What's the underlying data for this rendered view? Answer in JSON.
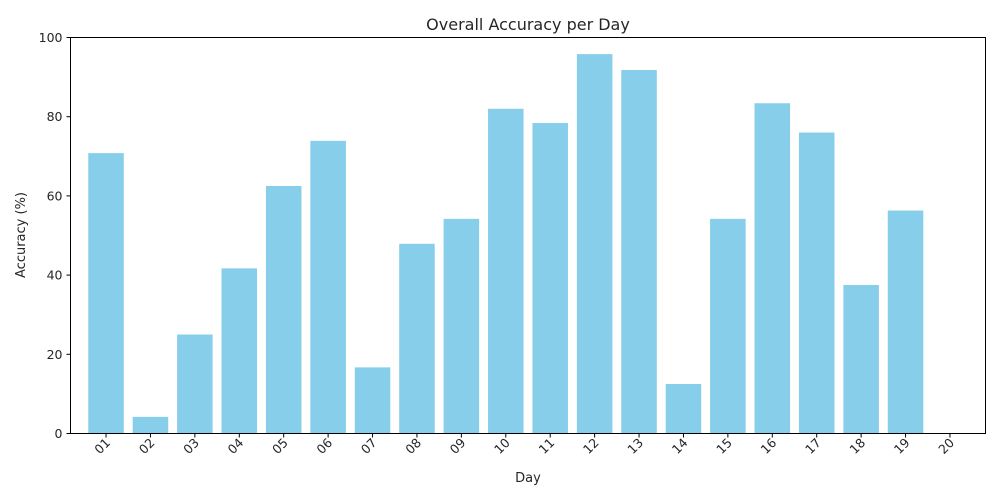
{
  "chart_data": {
    "type": "bar",
    "title": "Overall Accuracy per Day",
    "xlabel": "Day",
    "ylabel": "Accuracy (%)",
    "categories": [
      "01",
      "02",
      "03",
      "04",
      "05",
      "06",
      "07",
      "08",
      "09",
      "10",
      "11",
      "12",
      "13",
      "14",
      "15",
      "16",
      "17",
      "18",
      "19",
      "20"
    ],
    "values": [
      70.8,
      4.2,
      25.0,
      41.7,
      62.5,
      73.9,
      16.7,
      47.9,
      54.2,
      82.0,
      78.4,
      95.8,
      91.8,
      12.5,
      54.2,
      83.4,
      76.0,
      37.5,
      56.3,
      0
    ],
    "ylim": [
      0,
      100
    ],
    "yticks": [
      0,
      20,
      40,
      60,
      80,
      100
    ],
    "bar_color": "#87ceeb",
    "grid": false,
    "legend": "none"
  }
}
